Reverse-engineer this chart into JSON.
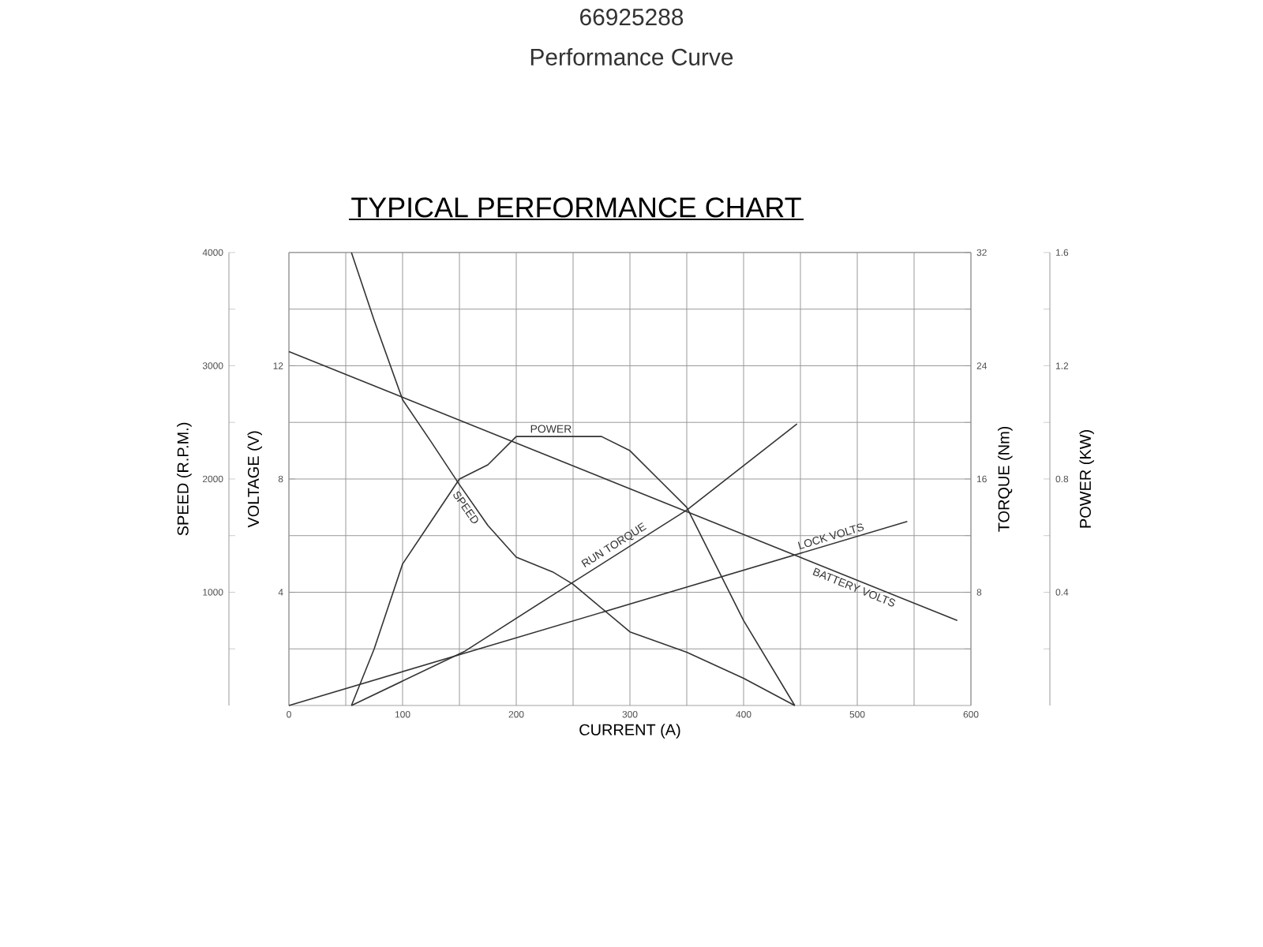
{
  "chart_data": [
    {
      "type": "line",
      "title": "66925288",
      "subtitle": "Performance Curve",
      "annotations": [
        "TYPICAL PERFORMANCE CHART"
      ],
      "xlabel": "CURRENT (A)",
      "ylabel": "SPEED (R.P.M.)",
      "y2label": "VOLTAGE (V)",
      "y3label": "TORQUE (Nm)",
      "xlim": [
        0,
        600
      ],
      "xticks": [
        0,
        {
          "value": 50,
          "label": null
        },
        100,
        {
          "value": 150,
          "label": null
        },
        200,
        {
          "value": 250,
          "label": null
        },
        300,
        {
          "value": 350,
          "label": null
        },
        400,
        {
          "value": 450,
          "label": null
        },
        500,
        {
          "value": 550,
          "label": null
        },
        600
      ],
      "ylim": [
        0,
        4000
      ],
      "yticks": [
        {
          "value": 500,
          "label": null
        },
        1000,
        {
          "value": 1500,
          "label": null
        },
        2000,
        {
          "value": 2500,
          "label": null
        },
        3000,
        {
          "value": 3500,
          "label": null
        },
        4000
      ],
      "y2lim": [
        0,
        16
      ],
      "y2ticks": [
        4,
        8,
        12
      ],
      "y3lim": [
        0,
        32
      ],
      "y3ticks": [
        {
          "value": 4,
          "label": null
        },
        8,
        {
          "value": 12,
          "label": null
        },
        16,
        {
          "value": 20,
          "label": null
        },
        24,
        {
          "value": 28,
          "label": null
        },
        32
      ],
      "grid": true,
      "marker": "none",
      "line_style": "solid",
      "series": [
        {
          "name": "SPEED",
          "color": "#333333",
          "x": [
            55,
            75,
            100,
            125,
            150,
            175,
            200,
            232,
            250,
            300,
            350,
            400,
            445
          ],
          "values": [
            4000,
            3400,
            2700,
            2330,
            1950,
            1590,
            1310,
            1180,
            1070,
            650,
            470,
            240,
            0
          ]
        },
        {
          "name": "RUN TORQUE",
          "color": "#333333",
          "axis": "y3",
          "x": [
            55,
            154,
            232,
            350,
            447
          ],
          "values": [
            0,
            3.8,
            7.8,
            13.8,
            19.9
          ]
        },
        {
          "name": "LOCK VOLTS",
          "color": "#333333",
          "axis": "y2",
          "x": [
            0,
            544
          ],
          "values": [
            0,
            6.5
          ]
        },
        {
          "name": "BATTERY VOLTS",
          "color": "#333333",
          "axis": "y2",
          "x": [
            0,
            588
          ],
          "values": [
            12.5,
            3.0
          ]
        }
      ]
    },
    {
      "type": "line",
      "ylabel": "POWER (KW)",
      "xlim": [
        0,
        600
      ],
      "tick_labels": "y",
      "ylim": [
        0,
        1.6
      ],
      "yticks": [
        {
          "value": 0.2,
          "label": null
        },
        0.4,
        {
          "value": 0.6,
          "label": null
        },
        0.8,
        {
          "value": 1.0,
          "label": null
        },
        1.2,
        {
          "value": 1.4,
          "label": null
        },
        1.6
      ],
      "marker": "none",
      "line_style": "solid",
      "series": [
        {
          "name": "POWER",
          "color": "#333333",
          "x": [
            55,
            75,
            100,
            125,
            150,
            175,
            200,
            250,
            275,
            300,
            325,
            350,
            400,
            445
          ],
          "values": [
            0,
            0.2,
            0.5,
            0.65,
            0.8,
            0.85,
            0.95,
            0.95,
            0.95,
            0.9,
            0.8,
            0.7,
            0.3,
            0
          ]
        }
      ]
    }
  ]
}
